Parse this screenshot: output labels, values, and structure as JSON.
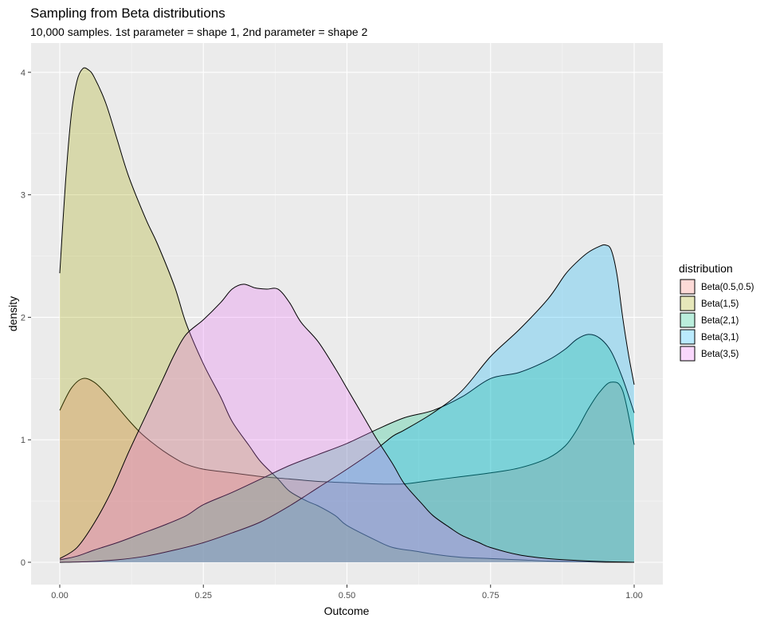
{
  "chart_data": {
    "type": "area",
    "title": "Sampling from Beta distributions",
    "subtitle": "10,000 samples. 1st parameter = shape 1, 2nd parameter = shape 2",
    "xlabel": "Outcome",
    "ylabel": "density",
    "xlim": [
      0,
      1
    ],
    "ylim": [
      0,
      4.2
    ],
    "x_ticks": [
      0,
      0.25,
      0.5,
      0.75,
      1
    ],
    "x_tick_labels": [
      "0.00",
      "0.25",
      "0.50",
      "0.75",
      "1.00"
    ],
    "y_ticks": [
      0,
      1,
      2,
      3,
      4
    ],
    "y_tick_labels": [
      "0",
      "1",
      "2",
      "3",
      "4"
    ],
    "grid": true,
    "legend": {
      "title": "distribution",
      "position": "right"
    },
    "series": [
      {
        "name": "Beta(0.5,0.5)",
        "color": "#F8766D",
        "points": [
          [
            0,
            1.24
          ],
          [
            0.02,
            1.42
          ],
          [
            0.04,
            1.5
          ],
          [
            0.06,
            1.47
          ],
          [
            0.08,
            1.38
          ],
          [
            0.1,
            1.27
          ],
          [
            0.12,
            1.16
          ],
          [
            0.14,
            1.06
          ],
          [
            0.16,
            0.98
          ],
          [
            0.18,
            0.91
          ],
          [
            0.2,
            0.85
          ],
          [
            0.22,
            0.8
          ],
          [
            0.25,
            0.76
          ],
          [
            0.3,
            0.73
          ],
          [
            0.35,
            0.7
          ],
          [
            0.4,
            0.68
          ],
          [
            0.45,
            0.66
          ],
          [
            0.5,
            0.65
          ],
          [
            0.55,
            0.64
          ],
          [
            0.6,
            0.64
          ],
          [
            0.65,
            0.67
          ],
          [
            0.7,
            0.7
          ],
          [
            0.75,
            0.73
          ],
          [
            0.8,
            0.77
          ],
          [
            0.85,
            0.85
          ],
          [
            0.88,
            0.95
          ],
          [
            0.9,
            1.08
          ],
          [
            0.92,
            1.25
          ],
          [
            0.94,
            1.39
          ],
          [
            0.96,
            1.47
          ],
          [
            0.98,
            1.4
          ],
          [
            1.0,
            0.96
          ]
        ]
      },
      {
        "name": "Beta(1,5)",
        "color": "#A3A500",
        "points": [
          [
            0,
            2.36
          ],
          [
            0.01,
            3.1
          ],
          [
            0.02,
            3.65
          ],
          [
            0.03,
            3.93
          ],
          [
            0.04,
            4.03
          ],
          [
            0.05,
            4.02
          ],
          [
            0.06,
            3.96
          ],
          [
            0.08,
            3.75
          ],
          [
            0.1,
            3.45
          ],
          [
            0.12,
            3.15
          ],
          [
            0.15,
            2.8
          ],
          [
            0.17,
            2.6
          ],
          [
            0.2,
            2.25
          ],
          [
            0.22,
            1.95
          ],
          [
            0.25,
            1.62
          ],
          [
            0.28,
            1.35
          ],
          [
            0.3,
            1.15
          ],
          [
            0.33,
            0.95
          ],
          [
            0.35,
            0.82
          ],
          [
            0.38,
            0.68
          ],
          [
            0.4,
            0.58
          ],
          [
            0.43,
            0.5
          ],
          [
            0.45,
            0.46
          ],
          [
            0.48,
            0.38
          ],
          [
            0.5,
            0.3
          ],
          [
            0.55,
            0.18
          ],
          [
            0.58,
            0.12
          ],
          [
            0.62,
            0.09
          ],
          [
            0.66,
            0.06
          ],
          [
            0.7,
            0.04
          ],
          [
            0.75,
            0.03
          ],
          [
            0.8,
            0.02
          ],
          [
            0.85,
            0.01
          ],
          [
            0.9,
            0.005
          ],
          [
            0.95,
            0.001
          ],
          [
            1.0,
            0.0
          ]
        ]
      },
      {
        "name": "Beta(2,1)",
        "color": "#00BF7D",
        "points": [
          [
            0,
            0.02
          ],
          [
            0.03,
            0.05
          ],
          [
            0.06,
            0.1
          ],
          [
            0.1,
            0.16
          ],
          [
            0.14,
            0.23
          ],
          [
            0.18,
            0.3
          ],
          [
            0.22,
            0.38
          ],
          [
            0.25,
            0.47
          ],
          [
            0.3,
            0.57
          ],
          [
            0.35,
            0.68
          ],
          [
            0.4,
            0.79
          ],
          [
            0.45,
            0.88
          ],
          [
            0.5,
            0.97
          ],
          [
            0.55,
            1.08
          ],
          [
            0.6,
            1.18
          ],
          [
            0.65,
            1.24
          ],
          [
            0.7,
            1.35
          ],
          [
            0.75,
            1.5
          ],
          [
            0.8,
            1.55
          ],
          [
            0.85,
            1.65
          ],
          [
            0.88,
            1.74
          ],
          [
            0.9,
            1.82
          ],
          [
            0.92,
            1.86
          ],
          [
            0.94,
            1.83
          ],
          [
            0.96,
            1.72
          ],
          [
            0.98,
            1.5
          ],
          [
            1.0,
            1.22
          ]
        ]
      },
      {
        "name": "Beta(3,1)",
        "color": "#00B0F6",
        "points": [
          [
            0,
            0.0
          ],
          [
            0.05,
            0.005
          ],
          [
            0.1,
            0.02
          ],
          [
            0.15,
            0.05
          ],
          [
            0.2,
            0.1
          ],
          [
            0.25,
            0.16
          ],
          [
            0.3,
            0.24
          ],
          [
            0.35,
            0.33
          ],
          [
            0.4,
            0.46
          ],
          [
            0.45,
            0.61
          ],
          [
            0.5,
            0.76
          ],
          [
            0.55,
            0.92
          ],
          [
            0.58,
            1.03
          ],
          [
            0.6,
            1.08
          ],
          [
            0.65,
            1.22
          ],
          [
            0.7,
            1.4
          ],
          [
            0.75,
            1.68
          ],
          [
            0.8,
            1.9
          ],
          [
            0.85,
            2.15
          ],
          [
            0.88,
            2.35
          ],
          [
            0.9,
            2.45
          ],
          [
            0.92,
            2.53
          ],
          [
            0.94,
            2.58
          ],
          [
            0.95,
            2.59
          ],
          [
            0.96,
            2.55
          ],
          [
            0.97,
            2.35
          ],
          [
            0.98,
            2.0
          ],
          [
            0.99,
            1.7
          ],
          [
            1.0,
            1.45
          ]
        ]
      },
      {
        "name": "Beta(3,5)",
        "color": "#E76BF3",
        "points": [
          [
            0,
            0.03
          ],
          [
            0.03,
            0.12
          ],
          [
            0.06,
            0.32
          ],
          [
            0.09,
            0.58
          ],
          [
            0.12,
            0.9
          ],
          [
            0.15,
            1.2
          ],
          [
            0.18,
            1.5
          ],
          [
            0.2,
            1.7
          ],
          [
            0.22,
            1.86
          ],
          [
            0.25,
            1.98
          ],
          [
            0.28,
            2.12
          ],
          [
            0.3,
            2.23
          ],
          [
            0.32,
            2.27
          ],
          [
            0.34,
            2.24
          ],
          [
            0.36,
            2.23
          ],
          [
            0.38,
            2.23
          ],
          [
            0.4,
            2.12
          ],
          [
            0.42,
            1.96
          ],
          [
            0.45,
            1.8
          ],
          [
            0.48,
            1.58
          ],
          [
            0.5,
            1.42
          ],
          [
            0.53,
            1.18
          ],
          [
            0.55,
            1.02
          ],
          [
            0.58,
            0.8
          ],
          [
            0.6,
            0.64
          ],
          [
            0.63,
            0.48
          ],
          [
            0.65,
            0.38
          ],
          [
            0.68,
            0.28
          ],
          [
            0.7,
            0.22
          ],
          [
            0.73,
            0.16
          ],
          [
            0.75,
            0.12
          ],
          [
            0.8,
            0.06
          ],
          [
            0.85,
            0.03
          ],
          [
            0.9,
            0.015
          ],
          [
            0.95,
            0.005
          ],
          [
            1.0,
            0.0
          ]
        ]
      }
    ]
  }
}
